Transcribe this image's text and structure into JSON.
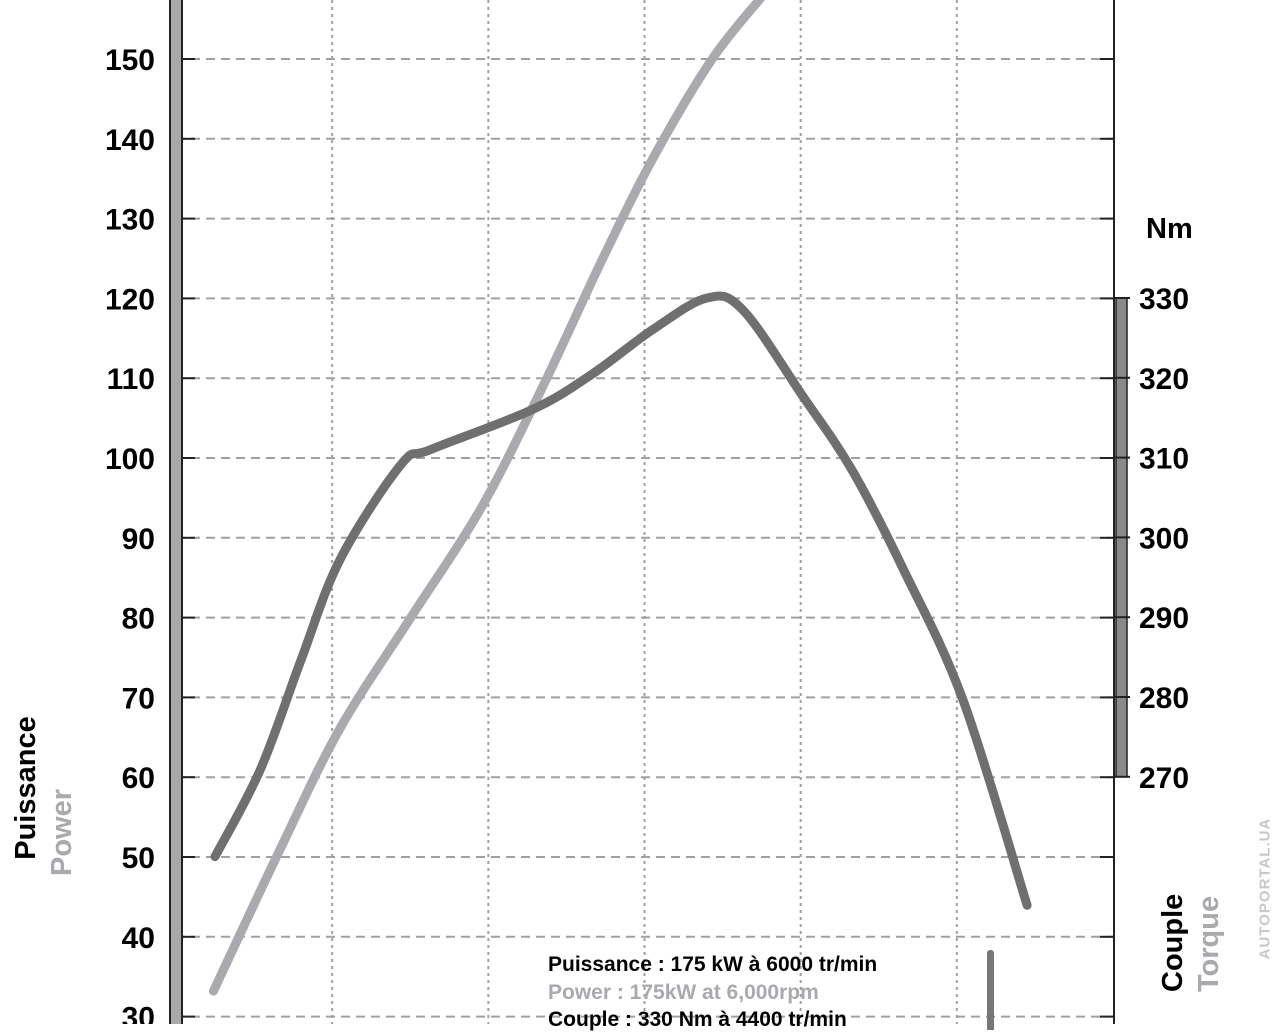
{
  "chart_data": {
    "type": "line",
    "title": "",
    "xlabel": "",
    "x_range_rpm": [
      1000,
      7000
    ],
    "x_grid_step": 1000,
    "left_axis": {
      "title": "Puissance",
      "subtitle": "Power",
      "unit": "",
      "range": [
        30,
        160
      ],
      "ticks": [
        30,
        40,
        50,
        60,
        70,
        80,
        90,
        100,
        110,
        120,
        130,
        140,
        150
      ]
    },
    "right_axis": {
      "title": "Couple",
      "subtitle": "Torque",
      "unit": "Nm",
      "range_bar": [
        270,
        330
      ],
      "ticks": [
        270,
        280,
        290,
        300,
        310,
        320,
        330
      ]
    },
    "grid": true,
    "series": [
      {
        "name": "Couple / Torque",
        "axis": "right",
        "color": "#6f6f6f",
        "x": [
          1250,
          1540,
          1800,
          2050,
          2440,
          2630,
          3280,
          3660,
          4050,
          4400,
          4630,
          5010,
          5330,
          5660,
          6040,
          6450
        ],
        "y": [
          260,
          270.9,
          284.6,
          297.2,
          309.1,
          311,
          316,
          320.4,
          326,
          330,
          328.5,
          317.8,
          308.4,
          295.9,
          279.6,
          253.9
        ]
      },
      {
        "name": "Puissance / Power",
        "axis": "left",
        "color": "#a9a9ae",
        "x": [
          1240,
          1670,
          2050,
          2500,
          2950,
          3340,
          3730,
          4050,
          4430,
          4760
        ],
        "y": [
          33.2,
          51.1,
          66.1,
          79.9,
          93.6,
          108.6,
          124.9,
          137.4,
          149.9,
          158
        ]
      }
    ],
    "annotations": [
      "Puissance : 175 kW à 6000 tr/min",
      "Power : 175kW at 6,000rpm",
      "Couple : 330 Nm à 4400 tr/min"
    ],
    "watermark": "AUTOPORTAL.UA"
  }
}
